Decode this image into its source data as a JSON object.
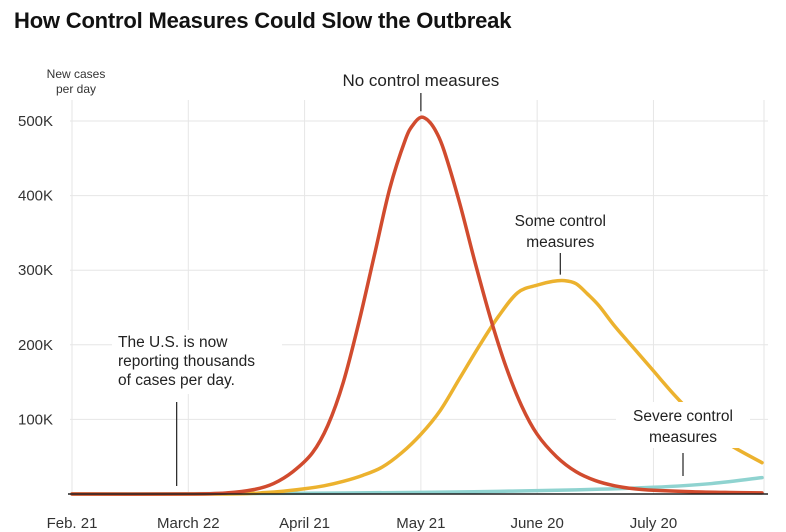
{
  "chart_data": {
    "type": "line",
    "title": "How Control Measures Could Slow the Outbreak",
    "ylabel_lines": [
      "New cases",
      "per day"
    ],
    "xlabel": "",
    "x_ticks": [
      "Feb. 21",
      "March 22",
      "April 21",
      "May 21",
      "June 20",
      "July 20"
    ],
    "x_tick_days": [
      0,
      30,
      60,
      90,
      120,
      150
    ],
    "xlim": [
      0,
      178
    ],
    "y_ticks": [
      "100K",
      "200K",
      "300K",
      "400K",
      "500K"
    ],
    "y_tick_values": [
      100000,
      200000,
      300000,
      400000,
      500000
    ],
    "ylim": [
      0,
      500000
    ],
    "grid": true,
    "legend": "none (series labeled directly)",
    "colors": {
      "no_control": "#d14b2e",
      "some_control": "#ecb22e",
      "severe_control": "#8fd3d0",
      "grid": "#e6e6e6",
      "axis": "#222222"
    },
    "series": [
      {
        "name": "No control measures",
        "x": [
          0,
          30,
          40,
          47,
          52,
          57,
          62,
          66,
          70,
          74,
          78,
          82,
          86,
          88,
          90,
          92,
          94,
          96,
          100,
          104,
          108,
          112,
          116,
          120,
          125,
          130,
          135,
          140,
          145,
          150,
          160,
          170,
          178
        ],
        "values": [
          0,
          0,
          1500,
          6000,
          14000,
          30000,
          55000,
          92000,
          150000,
          230000,
          320000,
          410000,
          475000,
          495000,
          505000,
          500000,
          485000,
          460000,
          390000,
          310000,
          235000,
          170000,
          118000,
          80000,
          50000,
          30000,
          18000,
          11000,
          7000,
          5000,
          3000,
          2000,
          1500
        ]
      },
      {
        "name": "Some control measures",
        "x": [
          0,
          40,
          50,
          55,
          60,
          65,
          70,
          75,
          80,
          85,
          90,
          95,
          100,
          105,
          110,
          115,
          120,
          124,
          127,
          130,
          133,
          136,
          140,
          145,
          150,
          155,
          160,
          165,
          170,
          178
        ],
        "values": [
          0,
          0,
          2000,
          4000,
          7000,
          11000,
          17000,
          25000,
          36000,
          55000,
          80000,
          112000,
          155000,
          198000,
          238000,
          270000,
          280000,
          285000,
          286000,
          282000,
          268000,
          252000,
          225000,
          195000,
          165000,
          135000,
          108000,
          85000,
          65000,
          42000
        ]
      },
      {
        "name": "Severe control measures",
        "x": [
          0,
          30,
          60,
          90,
          110,
          130,
          150,
          165,
          178
        ],
        "values": [
          0,
          400,
          1000,
          2200,
          3600,
          5500,
          9000,
          14000,
          22000
        ]
      }
    ],
    "annotations": [
      {
        "id": "no_control",
        "lines": [
          "No control measures"
        ],
        "x": 90,
        "y": 505000
      },
      {
        "id": "some_control",
        "lines": [
          "Some control",
          "measures"
        ],
        "x": 127,
        "y": 286000
      },
      {
        "id": "severe_control",
        "lines": [
          "Severe control",
          "measures"
        ],
        "x": 158,
        "y": 14000
      },
      {
        "id": "us_reporting",
        "lines": [
          "The U.S. is now",
          "reporting thousands",
          "of cases per day."
        ],
        "x": 27,
        "y": 0
      }
    ]
  }
}
